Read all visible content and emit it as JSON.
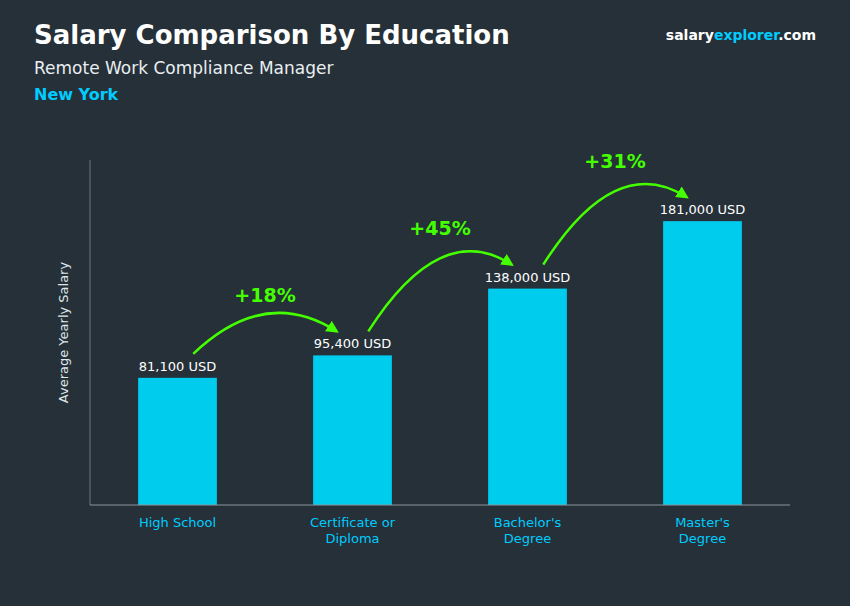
{
  "chart_data": {
    "type": "bar",
    "title": "Salary Comparison By Education",
    "subtitle": "Remote Work Compliance Manager",
    "location": "New York",
    "brand": [
      "salary",
      "explorer",
      ".com"
    ],
    "categories": [
      "High School",
      "Certificate or\nDiploma",
      "Bachelor's\nDegree",
      "Master's\nDegree"
    ],
    "values": [
      81100,
      95400,
      138000,
      181000
    ],
    "value_labels": [
      "81,100 USD",
      "95,400 USD",
      "138,000 USD",
      "181,000 USD"
    ],
    "data_labels": true,
    "annotations": [
      "+18%",
      "+45%",
      "+31%"
    ],
    "annotation_color": "#44ff00",
    "color": "#00ccee",
    "ylabel": "Average Yearly Salary",
    "ylim": [
      0,
      220000
    ],
    "tick_labels": "x",
    "grid": false
  }
}
